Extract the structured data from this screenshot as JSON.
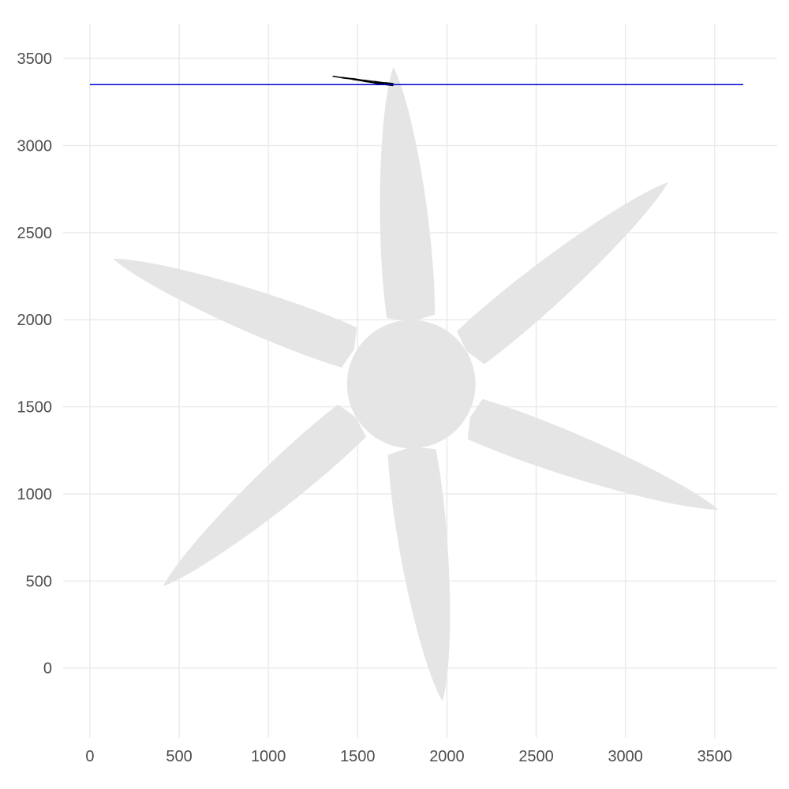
{
  "chart_data": {
    "type": "scatter",
    "title": "",
    "xlabel": "",
    "ylabel": "",
    "xlim": [
      -150,
      3850
    ],
    "ylim": [
      -400,
      3700
    ],
    "x_ticks": [
      0,
      500,
      1000,
      1500,
      2000,
      2500,
      3000,
      3500
    ],
    "y_ticks": [
      0,
      500,
      1000,
      1500,
      2000,
      2500,
      3000,
      3500
    ],
    "grid": true,
    "legend": "none",
    "colors": {
      "shape_fill": "#e5e5e5",
      "reference_line": "#0000cd",
      "marker_trace": "#000000",
      "grid": "#ebebeb",
      "tick_text": "#4d4d4d"
    },
    "shape": {
      "name": "six-blade propeller",
      "hub_center": [
        1800,
        1630
      ],
      "hub_radius": 360,
      "blades": [
        {
          "base": [
            1800,
            1990
          ],
          "tip": [
            1700,
            3450
          ],
          "half_width": 135
        },
        {
          "base": [
            2110,
            1820
          ],
          "tip": [
            3240,
            2790
          ],
          "half_width": 120
        },
        {
          "base": [
            2130,
            1440
          ],
          "tip": [
            3520,
            910
          ],
          "half_width": 120
        },
        {
          "base": [
            1800,
            1270
          ],
          "tip": [
            1975,
            -190
          ],
          "half_width": 135
        },
        {
          "base": [
            1490,
            1440
          ],
          "tip": [
            410,
            470
          ],
          "half_width": 120
        },
        {
          "base": [
            1480,
            1830
          ],
          "tip": [
            130,
            2350
          ],
          "half_width": 120
        }
      ]
    },
    "reference_line": {
      "y": 3350,
      "x_range": [
        0,
        3660
      ]
    },
    "trace": [
      {
        "x": 1360,
        "y": 3398
      },
      {
        "x": 1410,
        "y": 3390
      },
      {
        "x": 1470,
        "y": 3383
      },
      {
        "x": 1530,
        "y": 3373
      },
      {
        "x": 1590,
        "y": 3364
      },
      {
        "x": 1650,
        "y": 3356
      },
      {
        "x": 1700,
        "y": 3350
      }
    ]
  }
}
